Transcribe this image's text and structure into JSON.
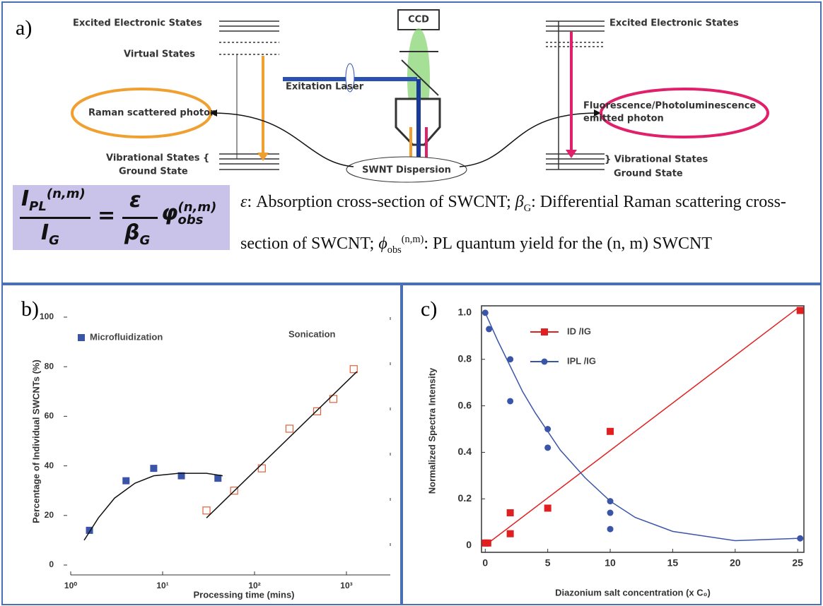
{
  "diagram": {
    "label": "a)",
    "left_excited": "Excited Electronic States",
    "virtual": "Virtual States",
    "raman": "Raman scattered photon",
    "left_vib": "Vibrational States {",
    "left_ground": "Ground State",
    "ccd": "CCD",
    "laser": "Exitation Laser",
    "dispersion": "SWNT Dispersion",
    "right_excited": "Excited Electronic States",
    "fluor_1": "Fluorescence/Photoluminescence",
    "fluor_2": "emitted photon",
    "right_vib": "} Vibrational States",
    "right_ground": "Ground State"
  },
  "equation": {
    "num": "I",
    "num_sub": "PL",
    "num_sup": "(n,m)",
    "den": "I",
    "den_sub": "G",
    "eq": "=",
    "eps": "ε",
    "beta": "β",
    "beta_sub": "G",
    "phi": "φ",
    "phi_sup": "(n,m)",
    "phi_sub": "obs"
  },
  "caption": {
    "eps": "ε",
    "t1": ":  Absorption cross-section of SWCNT; ",
    "beta": "β",
    "beta_sub": "G",
    "t2": ":  Differential Raman scattering cross-section of SWCNT;  ",
    "phi": "ϕ",
    "phi_sub": "obs",
    "phi_sup": "(n,m)",
    "t3": ":  PL quantum yield for the (n, m) SWCNT"
  },
  "chart_data": [
    {
      "type": "scatter",
      "panel_label": "b)",
      "x_label": "Processing time (mins)",
      "y_label": "Percentage of Individual SWCNTs (%)",
      "xscale": "log",
      "xlim": [
        1,
        3000
      ],
      "ylim": [
        0,
        100
      ],
      "xticks": [
        {
          "value": 1,
          "label": "10⁰"
        },
        {
          "value": 10,
          "label": "10¹"
        },
        {
          "value": 100,
          "label": "10²"
        },
        {
          "value": 1000,
          "label": "10³"
        }
      ],
      "yticks": [
        0,
        20,
        40,
        60,
        80,
        100
      ],
      "series": [
        {
          "name": "Microfluidization",
          "color": "#3a55a8",
          "marker": "square",
          "x": [
            1.6,
            4,
            8,
            16,
            40
          ],
          "values": [
            14,
            34,
            39,
            36,
            35
          ]
        },
        {
          "name": "Sonication",
          "color": "#e0603a",
          "marker": "square-open",
          "x": [
            30,
            60,
            120,
            240,
            480,
            720,
            1200
          ],
          "values": [
            22,
            30,
            39,
            55,
            62,
            67,
            79
          ]
        },
        {
          "color": "#111111",
          "marker": "line",
          "x": [
            1.4,
            2,
            3,
            5,
            8,
            15,
            30,
            45
          ],
          "values": [
            10,
            19,
            27,
            33,
            36,
            37,
            37,
            36
          ]
        },
        {
          "color": "#111111",
          "marker": "line",
          "x": [
            30,
            1300
          ],
          "values": [
            19,
            78
          ]
        }
      ]
    },
    {
      "type": "scatter",
      "panel_label": "c)",
      "x_label": "Diazonium salt concentration (x C₀)",
      "y_label": "Normalized Spectra Intensity",
      "xlim": [
        -0.3,
        25.5
      ],
      "ylim": [
        -0.03,
        1.03
      ],
      "xticks": [
        0,
        5,
        10,
        15,
        20,
        25
      ],
      "yticks": [
        0,
        0.2,
        0.4,
        0.6,
        0.8,
        {
          "value": 1,
          "label": "1.0"
        }
      ],
      "series": [
        {
          "name": "ID /IG",
          "color": "#e02020",
          "marker": "square",
          "x": [
            0,
            0.2,
            2,
            2,
            5,
            10,
            25.2
          ],
          "values": [
            0.01,
            0.01,
            0.14,
            0.05,
            0.16,
            0.49,
            1.01
          ]
        },
        {
          "name": "IPL /IG",
          "color": "#3a55a8",
          "marker": "circle",
          "x": [
            0,
            0.3,
            2,
            2,
            5,
            5,
            10,
            10,
            10,
            25.2
          ],
          "values": [
            1.0,
            0.93,
            0.8,
            0.62,
            0.5,
            0.42,
            0.19,
            0.14,
            0.07,
            0.03
          ]
        },
        {
          "color": "#e02020",
          "marker": "line",
          "x": [
            0,
            25
          ],
          "values": [
            0,
            1.02
          ]
        },
        {
          "color": "#3a55a8",
          "marker": "line",
          "x": [
            0,
            1,
            2,
            3,
            4,
            5,
            6,
            7,
            8,
            10,
            12,
            15,
            20,
            25
          ],
          "values": [
            1.0,
            0.88,
            0.77,
            0.66,
            0.57,
            0.49,
            0.41,
            0.35,
            0.29,
            0.19,
            0.12,
            0.06,
            0.02,
            0.03
          ]
        }
      ]
    }
  ]
}
